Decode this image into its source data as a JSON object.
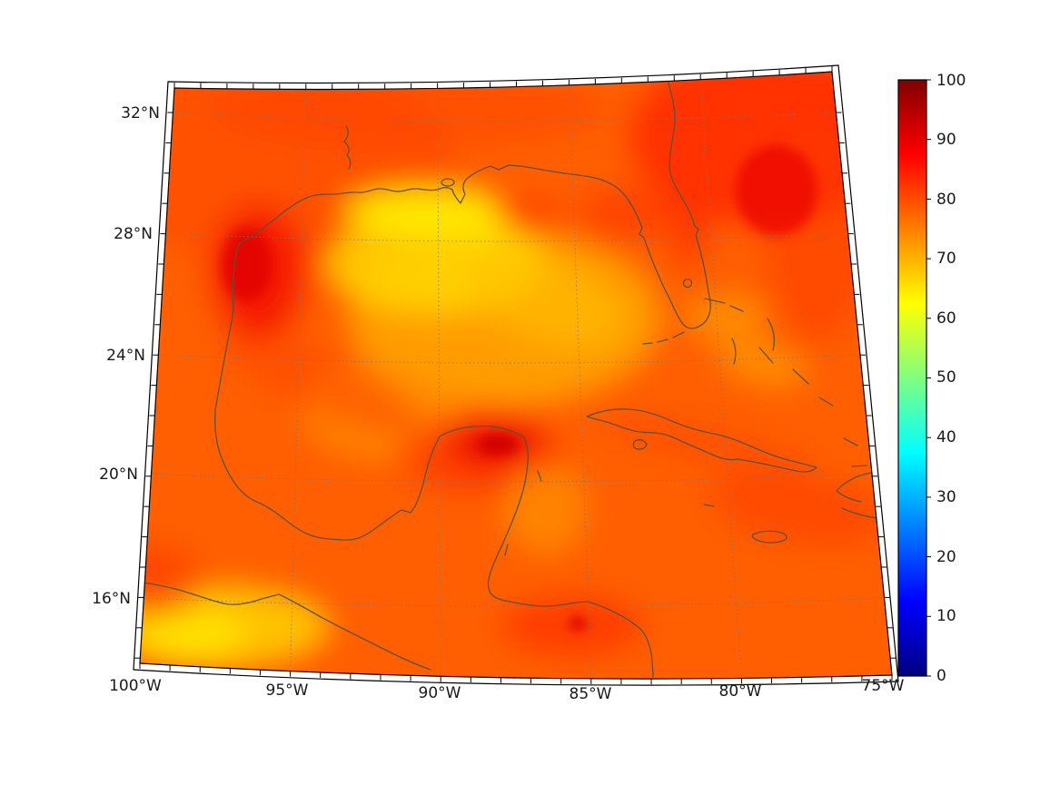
{
  "figure": {
    "background": "#ffffff",
    "description": "Geographic heatmap (conic / Lambert-conformal style projection) of the Gulf of Mexico, Florida, Cuba and the western Caribbean, rendered with a jet colormap and a vertical colorbar from 0 to 100"
  },
  "map": {
    "x_tick_labels": [
      "100°W",
      "95°W",
      "90°W",
      "85°W",
      "80°W",
      "75°W"
    ],
    "y_tick_labels": [
      "32°N",
      "28°N",
      "24°N",
      "20°N",
      "16°N"
    ],
    "gridline_style": "dotted gray",
    "coastline_color": "#57533d",
    "frame_color": "#000000"
  },
  "colorbar": {
    "min": 0,
    "max": 100,
    "tick_labels": [
      "100",
      "90",
      "80",
      "70",
      "60",
      "50",
      "40",
      "30",
      "20",
      "10",
      "0"
    ],
    "colormap": "jet",
    "colormap_stops_top_to_bottom": [
      "#7f0000",
      "#ff0000",
      "#ffff00",
      "#00ffff",
      "#0000ff",
      "#00007f"
    ]
  },
  "chart_data": {
    "type": "heatmap",
    "title": "",
    "xlabel": "",
    "ylabel": "",
    "projection": "conic (Lambert conformal style), meridians converge upward",
    "extent": {
      "lon_min_deg_w": 100,
      "lon_max_deg_w": 75,
      "lat_min_deg_n": 14,
      "lat_max_deg_n": 33
    },
    "lon_ticks_deg_w": [
      100,
      95,
      90,
      85,
      80,
      75
    ],
    "lat_ticks_deg_n": [
      32,
      28,
      24,
      20,
      16
    ],
    "colormap": "jet",
    "value_range": [
      0,
      100
    ],
    "colorbar_ticks": [
      0,
      10,
      20,
      30,
      40,
      50,
      60,
      70,
      80,
      90,
      100
    ],
    "grid": "dotted graticule at labeled parallels/meridians",
    "legend_position": "vertical colorbar at right",
    "field_summary": "values in the visible domain span roughly 60-92; no blue/green (0-55) values appear on the map",
    "approx_region_values": [
      {
        "region": "open Gulf / Atlantic / Caribbean background",
        "approx_value": 80
      },
      {
        "region": "Louisiana shelf bright yellow patch",
        "approx_value": 62
      },
      {
        "region": "north-central Gulf yellow area",
        "approx_value": 66
      },
      {
        "region": "central Gulf yellow-orange area",
        "approx_value": 70
      },
      {
        "region": "western Gulf nearshore red (Texas/Tamaulipas)",
        "approx_value": 87
      },
      {
        "region": "Bay of Campeche dark-red hotspot",
        "approx_value": 91
      },
      {
        "region": "northeast corner red (Georgia / Atlantic)",
        "approx_value": 86
      },
      {
        "region": "Florida east coast red band",
        "approx_value": 84
      },
      {
        "region": "Pacific coastal yellow strip (southern Mexico)",
        "approx_value": 66
      },
      {
        "region": "Honduras coast small red spot",
        "approx_value": 90
      },
      {
        "region": "Bahamas / Florida Straits orange patches",
        "approx_value": 72
      }
    ]
  }
}
